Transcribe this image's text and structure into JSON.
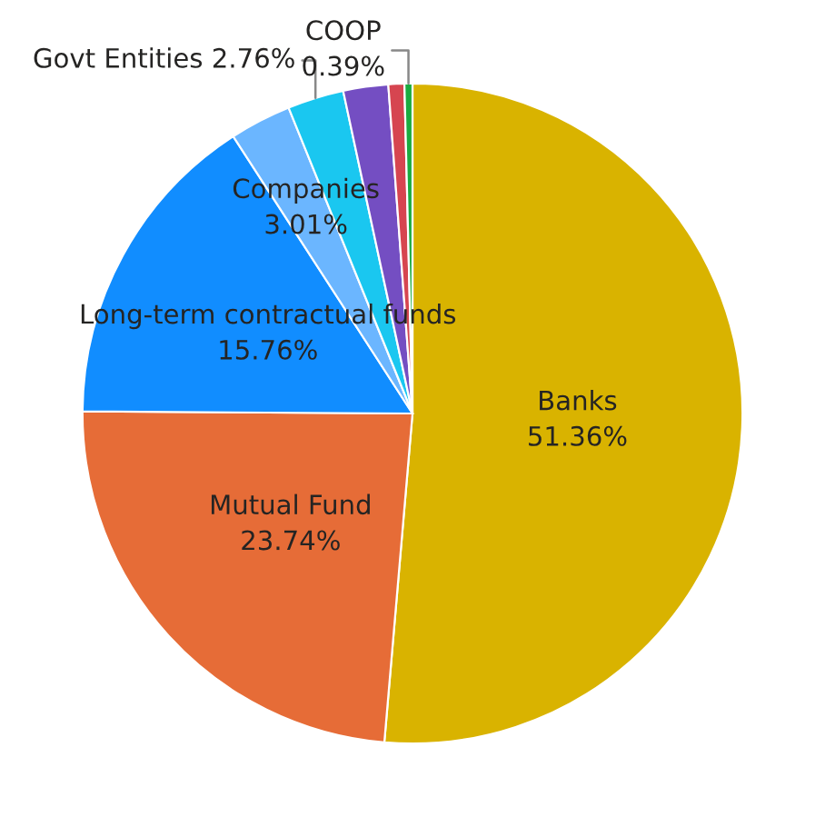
{
  "chart_data": {
    "type": "pie",
    "categories": [
      "Banks",
      "Mutual Fund",
      "Long-term contractual funds",
      "Companies",
      "Govt Entities",
      null,
      null,
      "COOP"
    ],
    "values": [
      51.36,
      23.74,
      15.76,
      3.01,
      2.76,
      2.2,
      0.78,
      0.39
    ],
    "value_labels": [
      "51.36%",
      "23.74%",
      "15.76%",
      "3.01%",
      "2.76%",
      null,
      null,
      "0.39%"
    ],
    "colors": [
      "#d9b300",
      "#e66c37",
      "#118dff",
      "#6bb6ff",
      "#1ac7f0",
      "#744ec2",
      "#d64550",
      "#1aab40"
    ]
  }
}
